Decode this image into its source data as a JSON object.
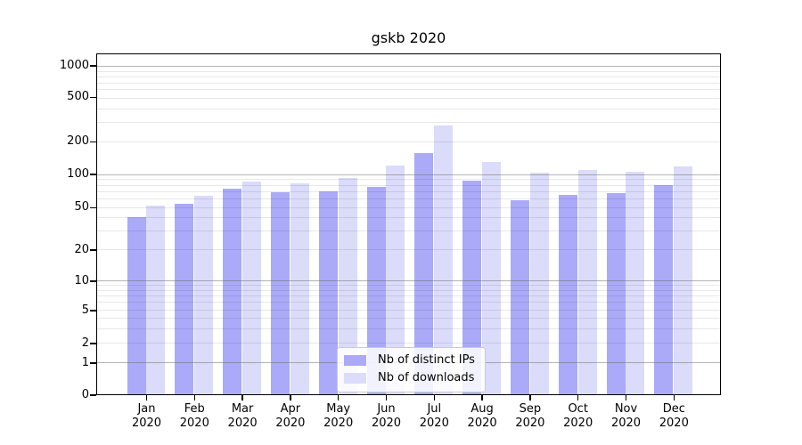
{
  "chart_data": {
    "type": "bar",
    "title": "gskb 2020",
    "categories": [
      "Jan",
      "Feb",
      "Mar",
      "Apr",
      "May",
      "Jun",
      "Jul",
      "Aug",
      "Sep",
      "Oct",
      "Nov",
      "Dec"
    ],
    "year_label": "2020",
    "series": [
      {
        "name": "Nb of distinct IPs",
        "color": "#aaaaf8",
        "values": [
          41,
          54,
          74,
          69,
          70,
          77,
          160,
          88,
          59,
          66,
          68,
          80
        ]
      },
      {
        "name": "Nb of downloads",
        "color": "#dbdbfa",
        "values": [
          52,
          64,
          86,
          83,
          93,
          121,
          285,
          130,
          105,
          110,
          107,
          119
        ]
      }
    ],
    "yscale": "symlog",
    "ylim": [
      0,
      1300
    ],
    "ytick_values": [
      0,
      1,
      2,
      5,
      10,
      20,
      50,
      100,
      200,
      500,
      1000
    ],
    "ytick_labels": [
      "0",
      "1",
      "2",
      "5",
      "10",
      "20",
      "50",
      "100",
      "200",
      "500",
      "1000"
    ],
    "grid": {
      "orientation": "horizontal",
      "major_values": [
        1,
        10,
        100,
        1000
      ],
      "minor_values": [
        2,
        3,
        4,
        5,
        6,
        7,
        8,
        9,
        20,
        30,
        40,
        50,
        60,
        70,
        80,
        90,
        200,
        300,
        400,
        500,
        600,
        700,
        800,
        900
      ]
    },
    "legend": {
      "position": "inside-lower-center"
    },
    "scale_anchors": [
      [
        0,
        0
      ],
      [
        1,
        0.0937
      ],
      [
        2,
        0.151
      ],
      [
        5,
        0.2474
      ],
      [
        10,
        0.3333
      ],
      [
        20,
        0.4245
      ],
      [
        50,
        0.5487
      ],
      [
        100,
        0.6458
      ],
      [
        200,
        0.7414
      ],
      [
        500,
        0.8716
      ],
      [
        1000,
        0.9635
      ]
    ]
  }
}
